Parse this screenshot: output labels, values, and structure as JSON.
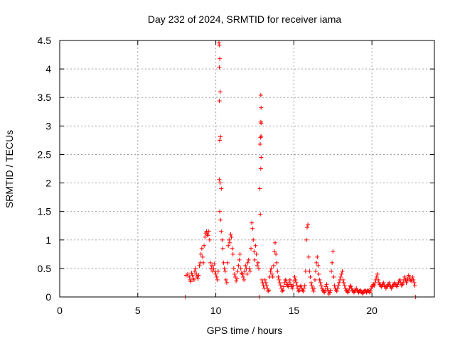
{
  "chart_data": {
    "type": "scatter",
    "title": "Day 232 of 2024, SRMTID for receiver iama",
    "xlabel": "GPS time / hours",
    "ylabel": "SRMTID / TECUs",
    "xlim": [
      0,
      24
    ],
    "ylim": [
      0,
      4.5
    ],
    "xticks": [
      0,
      5,
      10,
      15,
      20
    ],
    "xtick_labels": [
      "0",
      "5",
      "10",
      "15",
      "20"
    ],
    "yticks": [
      0,
      0.5,
      1,
      1.5,
      2,
      2.5,
      3,
      3.5,
      4,
      4.5
    ],
    "ytick_labels": [
      "0",
      "0.5",
      "1",
      "1.5",
      "2",
      "2.5",
      "3",
      "3.5",
      "4",
      "4.5"
    ],
    "grid": true,
    "marker": "+",
    "series_color": "#ff0000",
    "series": [
      {
        "name": "SRMTID",
        "points": [
          [
            8.05,
            0.0
          ],
          [
            8.1,
            0.38
          ],
          [
            8.2,
            0.4
          ],
          [
            8.3,
            0.35
          ],
          [
            8.35,
            0.3
          ],
          [
            8.4,
            0.27
          ],
          [
            8.45,
            0.42
          ],
          [
            8.5,
            0.38
          ],
          [
            8.55,
            0.33
          ],
          [
            8.6,
            0.3
          ],
          [
            8.65,
            0.45
          ],
          [
            8.7,
            0.5
          ],
          [
            8.75,
            0.4
          ],
          [
            8.8,
            0.35
          ],
          [
            8.85,
            0.32
          ],
          [
            8.9,
            0.38
          ],
          [
            8.95,
            0.55
          ],
          [
            9.0,
            0.6
          ],
          [
            9.05,
            0.75
          ],
          [
            9.1,
            0.85
          ],
          [
            9.15,
            0.7
          ],
          [
            9.2,
            0.6
          ],
          [
            9.25,
            0.9
          ],
          [
            9.3,
            1.05
          ],
          [
            9.35,
            1.12
          ],
          [
            9.4,
            1.15
          ],
          [
            9.45,
            1.1
          ],
          [
            9.5,
            1.08
          ],
          [
            9.55,
            1.15
          ],
          [
            9.6,
            1.0
          ],
          [
            9.65,
            0.6
          ],
          [
            9.7,
            0.5
          ],
          [
            9.75,
            0.55
          ],
          [
            9.8,
            0.45
          ],
          [
            9.85,
            0.5
          ],
          [
            9.9,
            0.58
          ],
          [
            9.95,
            0.45
          ],
          [
            10.0,
            0.4
          ],
          [
            10.05,
            0.35
          ],
          [
            10.1,
            0.3
          ],
          [
            10.15,
            0.45
          ],
          [
            10.2,
            4.46
          ],
          [
            10.22,
            4.42
          ],
          [
            10.25,
            4.18
          ],
          [
            10.22,
            4.03
          ],
          [
            10.28,
            3.6
          ],
          [
            10.23,
            3.44
          ],
          [
            10.3,
            2.81
          ],
          [
            10.25,
            2.75
          ],
          [
            10.22,
            2.06
          ],
          [
            10.28,
            2.0
          ],
          [
            10.35,
            1.9
          ],
          [
            10.25,
            1.5
          ],
          [
            10.3,
            1.35
          ],
          [
            10.35,
            1.15
          ],
          [
            10.4,
            1.0
          ],
          [
            10.45,
            0.85
          ],
          [
            10.5,
            0.6
          ],
          [
            10.55,
            0.5
          ],
          [
            10.6,
            0.45
          ],
          [
            10.65,
            0.3
          ],
          [
            10.7,
            0.25
          ],
          [
            10.75,
            0.6
          ],
          [
            10.8,
            0.9
          ],
          [
            10.85,
            1.0
          ],
          [
            10.9,
            0.95
          ],
          [
            10.95,
            1.1
          ],
          [
            11.0,
            1.05
          ],
          [
            11.05,
            0.85
          ],
          [
            11.1,
            0.75
          ],
          [
            11.15,
            0.5
          ],
          [
            11.2,
            0.4
          ],
          [
            11.25,
            0.35
          ],
          [
            11.3,
            0.28
          ],
          [
            11.35,
            0.32
          ],
          [
            11.4,
            0.45
          ],
          [
            11.45,
            0.55
          ],
          [
            11.5,
            0.65
          ],
          [
            11.55,
            0.75
          ],
          [
            11.6,
            0.5
          ],
          [
            11.65,
            0.42
          ],
          [
            11.7,
            0.4
          ],
          [
            11.75,
            0.35
          ],
          [
            11.8,
            0.3
          ],
          [
            11.85,
            0.45
          ],
          [
            11.9,
            0.55
          ],
          [
            11.95,
            0.5
          ],
          [
            12.0,
            0.4
          ],
          [
            12.05,
            0.6
          ],
          [
            12.1,
            0.65
          ],
          [
            12.15,
            0.5
          ],
          [
            12.2,
            0.45
          ],
          [
            12.25,
            0.85
          ],
          [
            12.3,
            1.3
          ],
          [
            12.35,
            1.2
          ],
          [
            12.4,
            1.0
          ],
          [
            12.45,
            0.8
          ],
          [
            12.5,
            0.65
          ],
          [
            12.55,
            0.9
          ],
          [
            12.6,
            0.75
          ],
          [
            12.65,
            0.55
          ],
          [
            12.7,
            0.6
          ],
          [
            12.75,
            0.5
          ],
          [
            12.8,
            0.0
          ],
          [
            12.82,
            1.9
          ],
          [
            12.85,
            1.45
          ],
          [
            12.88,
            2.25
          ],
          [
            12.9,
            2.45
          ],
          [
            12.84,
            2.68
          ],
          [
            12.9,
            2.82
          ],
          [
            12.86,
            2.8
          ],
          [
            12.9,
            3.05
          ],
          [
            12.88,
            3.07
          ],
          [
            12.9,
            3.32
          ],
          [
            12.88,
            3.54
          ],
          [
            12.95,
            0.3
          ],
          [
            13.0,
            0.25
          ],
          [
            13.05,
            0.2
          ],
          [
            13.1,
            0.15
          ],
          [
            13.15,
            0.3
          ],
          [
            13.2,
            0.25
          ],
          [
            13.25,
            0.2
          ],
          [
            13.3,
            0.15
          ],
          [
            13.35,
            0.1
          ],
          [
            13.4,
            0.12
          ],
          [
            13.45,
            0.35
          ],
          [
            13.5,
            0.45
          ],
          [
            13.55,
            0.5
          ],
          [
            13.6,
            0.4
          ],
          [
            13.65,
            0.35
          ],
          [
            13.7,
            0.55
          ],
          [
            13.75,
            0.8
          ],
          [
            13.8,
            0.95
          ],
          [
            13.85,
            0.75
          ],
          [
            13.9,
            0.6
          ],
          [
            13.95,
            0.45
          ],
          [
            14.0,
            0.35
          ],
          [
            14.05,
            0.3
          ],
          [
            14.1,
            0.25
          ],
          [
            14.15,
            0.2
          ],
          [
            14.2,
            0.15
          ],
          [
            14.25,
            0.1
          ],
          [
            14.3,
            0.12
          ],
          [
            14.35,
            0.18
          ],
          [
            14.4,
            0.25
          ],
          [
            14.45,
            0.3
          ],
          [
            14.5,
            0.28
          ],
          [
            14.55,
            0.22
          ],
          [
            14.6,
            0.2
          ],
          [
            14.65,
            0.18
          ],
          [
            14.7,
            0.25
          ],
          [
            14.75,
            0.3
          ],
          [
            14.8,
            0.22
          ],
          [
            14.85,
            0.18
          ],
          [
            14.9,
            0.15
          ],
          [
            14.95,
            0.2
          ],
          [
            15.0,
            0.28
          ],
          [
            15.05,
            0.35
          ],
          [
            15.1,
            0.3
          ],
          [
            15.15,
            0.25
          ],
          [
            15.2,
            0.2
          ],
          [
            15.25,
            0.15
          ],
          [
            15.3,
            0.1
          ],
          [
            15.35,
            0.12
          ],
          [
            15.4,
            0.18
          ],
          [
            15.45,
            0.2
          ],
          [
            15.5,
            0.15
          ],
          [
            15.55,
            0.12
          ],
          [
            15.6,
            0.1
          ],
          [
            15.65,
            0.15
          ],
          [
            15.7,
            0.2
          ],
          [
            15.75,
            0.45
          ],
          [
            15.8,
            1.0
          ],
          [
            15.85,
            1.22
          ],
          [
            15.9,
            1.27
          ],
          [
            15.95,
            0.7
          ],
          [
            16.0,
            0.45
          ],
          [
            16.05,
            0.35
          ],
          [
            16.1,
            0.25
          ],
          [
            16.15,
            0.2
          ],
          [
            16.2,
            0.15
          ],
          [
            16.25,
            0.1
          ],
          [
            16.3,
            0.15
          ],
          [
            16.35,
            0.3
          ],
          [
            16.4,
            0.45
          ],
          [
            16.45,
            0.6
          ],
          [
            16.5,
            0.7
          ],
          [
            16.55,
            0.55
          ],
          [
            16.6,
            0.4
          ],
          [
            16.65,
            0.3
          ],
          [
            16.7,
            0.25
          ],
          [
            16.75,
            0.2
          ],
          [
            16.8,
            0.15
          ],
          [
            16.85,
            0.12
          ],
          [
            16.9,
            0.1
          ],
          [
            16.95,
            0.08
          ],
          [
            17.0,
            0.12
          ],
          [
            17.05,
            0.18
          ],
          [
            17.1,
            0.22
          ],
          [
            17.15,
            0.15
          ],
          [
            17.2,
            0.1
          ],
          [
            17.25,
            0.05
          ],
          [
            17.3,
            0.08
          ],
          [
            17.35,
            0.12
          ],
          [
            17.4,
            0.45
          ],
          [
            17.45,
            0.6
          ],
          [
            17.5,
            0.8
          ],
          [
            17.55,
            0.35
          ],
          [
            17.6,
            0.2
          ],
          [
            17.65,
            0.15
          ],
          [
            17.7,
            0.12
          ],
          [
            17.75,
            0.1
          ],
          [
            17.8,
            0.15
          ],
          [
            17.85,
            0.2
          ],
          [
            17.9,
            0.25
          ],
          [
            17.95,
            0.3
          ],
          [
            18.0,
            0.35
          ],
          [
            18.05,
            0.4
          ],
          [
            18.1,
            0.45
          ],
          [
            18.15,
            0.3
          ],
          [
            18.2,
            0.25
          ],
          [
            18.25,
            0.2
          ],
          [
            18.3,
            0.15
          ],
          [
            18.35,
            0.12
          ],
          [
            18.4,
            0.1
          ],
          [
            18.45,
            0.08
          ],
          [
            18.5,
            0.1
          ],
          [
            18.55,
            0.15
          ],
          [
            18.6,
            0.2
          ],
          [
            18.65,
            0.18
          ],
          [
            18.7,
            0.15
          ],
          [
            18.75,
            0.12
          ],
          [
            18.8,
            0.1
          ],
          [
            18.85,
            0.08
          ],
          [
            18.9,
            0.1
          ],
          [
            18.95,
            0.12
          ],
          [
            19.0,
            0.15
          ],
          [
            19.05,
            0.12
          ],
          [
            19.1,
            0.1
          ],
          [
            19.15,
            0.08
          ],
          [
            19.2,
            0.1
          ],
          [
            19.25,
            0.12
          ],
          [
            19.3,
            0.1
          ],
          [
            19.35,
            0.08
          ],
          [
            19.4,
            0.06
          ],
          [
            19.45,
            0.08
          ],
          [
            19.5,
            0.1
          ],
          [
            19.55,
            0.12
          ],
          [
            19.6,
            0.1
          ],
          [
            19.65,
            0.08
          ],
          [
            19.7,
            0.1
          ],
          [
            19.75,
            0.12
          ],
          [
            19.8,
            0.1
          ],
          [
            19.85,
            0.08
          ],
          [
            19.9,
            0.1
          ],
          [
            19.95,
            0.15
          ],
          [
            20.0,
            0.18
          ],
          [
            20.05,
            0.2
          ],
          [
            20.1,
            0.22
          ],
          [
            20.15,
            0.2
          ],
          [
            20.2,
            0.25
          ],
          [
            20.25,
            0.3
          ],
          [
            20.3,
            0.35
          ],
          [
            20.35,
            0.4
          ],
          [
            20.4,
            0.3
          ],
          [
            20.45,
            0.25
          ],
          [
            20.5,
            0.22
          ],
          [
            20.55,
            0.2
          ],
          [
            20.6,
            0.18
          ],
          [
            20.65,
            0.2
          ],
          [
            20.7,
            0.22
          ],
          [
            20.75,
            0.25
          ],
          [
            20.8,
            0.2
          ],
          [
            20.85,
            0.18
          ],
          [
            20.9,
            0.15
          ],
          [
            20.95,
            0.18
          ],
          [
            21.0,
            0.2
          ],
          [
            21.05,
            0.22
          ],
          [
            21.1,
            0.25
          ],
          [
            21.15,
            0.2
          ],
          [
            21.2,
            0.18
          ],
          [
            21.25,
            0.15
          ],
          [
            21.3,
            0.18
          ],
          [
            21.35,
            0.2
          ],
          [
            21.4,
            0.22
          ],
          [
            21.45,
            0.25
          ],
          [
            21.5,
            0.22
          ],
          [
            21.55,
            0.2
          ],
          [
            21.6,
            0.18
          ],
          [
            21.65,
            0.22
          ],
          [
            21.7,
            0.25
          ],
          [
            21.75,
            0.28
          ],
          [
            21.8,
            0.3
          ],
          [
            21.85,
            0.25
          ],
          [
            21.9,
            0.2
          ],
          [
            21.95,
            0.22
          ],
          [
            22.0,
            0.25
          ],
          [
            22.05,
            0.3
          ],
          [
            22.1,
            0.35
          ],
          [
            22.15,
            0.3
          ],
          [
            22.2,
            0.25
          ],
          [
            22.25,
            0.28
          ],
          [
            22.3,
            0.32
          ],
          [
            22.35,
            0.38
          ],
          [
            22.4,
            0.35
          ],
          [
            22.45,
            0.3
          ],
          [
            22.5,
            0.28
          ],
          [
            22.55,
            0.3
          ],
          [
            22.6,
            0.35
          ],
          [
            22.65,
            0.3
          ],
          [
            22.7,
            0.25
          ],
          [
            22.75,
            0.2
          ],
          [
            22.8,
            0.0
          ]
        ]
      }
    ]
  }
}
